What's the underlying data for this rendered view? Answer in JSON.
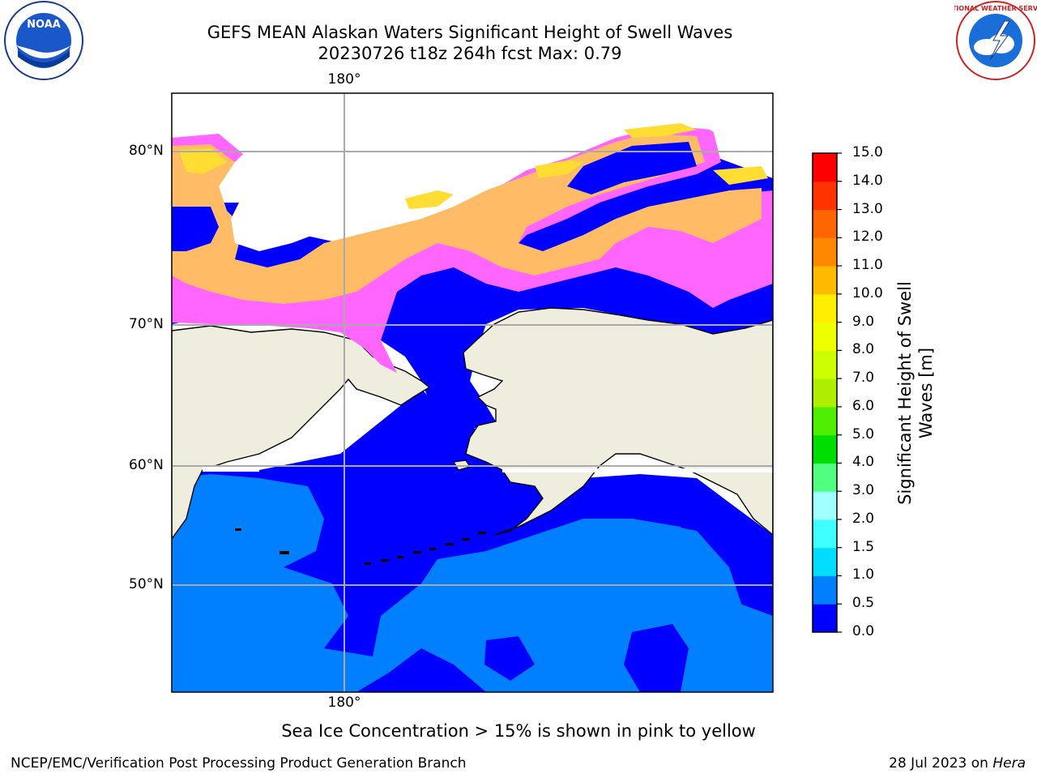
{
  "title_line1": "GEFS MEAN Alaskan Waters Significant Height of Swell Waves",
  "title_line2": "20230726 t18z 264h fcst   Max: 0.79",
  "lat_labels": [
    "80°N",
    "70°N",
    "60°N",
    "50°N"
  ],
  "lon_label_top": "180°",
  "lon_label_bottom": "180°",
  "colorbar": {
    "label": "Significant Height of Swell Waves [m]",
    "ticks": [
      "0.0",
      "0.5",
      "1.0",
      "1.5",
      "2.0",
      "3.0",
      "4.0",
      "5.0",
      "6.0",
      "7.0",
      "8.0",
      "9.0",
      "10.0",
      "11.0",
      "12.0",
      "13.0",
      "14.0",
      "15.0"
    ],
    "colors": [
      "#0000ff",
      "#0080ff",
      "#00ddff",
      "#40ffff",
      "#a0ffff",
      "#50ff80",
      "#00dd00",
      "#50ee00",
      "#b0ee00",
      "#ccff00",
      "#eeff00",
      "#ffee00",
      "#ffbb00",
      "#ff8800",
      "#ff6600",
      "#ff3300",
      "#ff0000"
    ]
  },
  "colors": {
    "swell_low": "#0000ff",
    "swell_mid": "#0080ff",
    "land": "#efedde",
    "ice_pink": "#ff66ff",
    "ice_orange": "#ffbb66",
    "ice_yellow": "#ffdd33"
  },
  "note": "Sea Ice Concentration > 15% is shown in pink to yellow",
  "footer_left": "NCEP/EMC/Verification Post Processing Product Generation Branch",
  "footer_right_date": "28 Jul 2023 on",
  "footer_right_host": "Hera",
  "logos": {
    "noaa_text": "NOAA",
    "nws_text": "NATIONAL WEATHER SERVICE"
  }
}
